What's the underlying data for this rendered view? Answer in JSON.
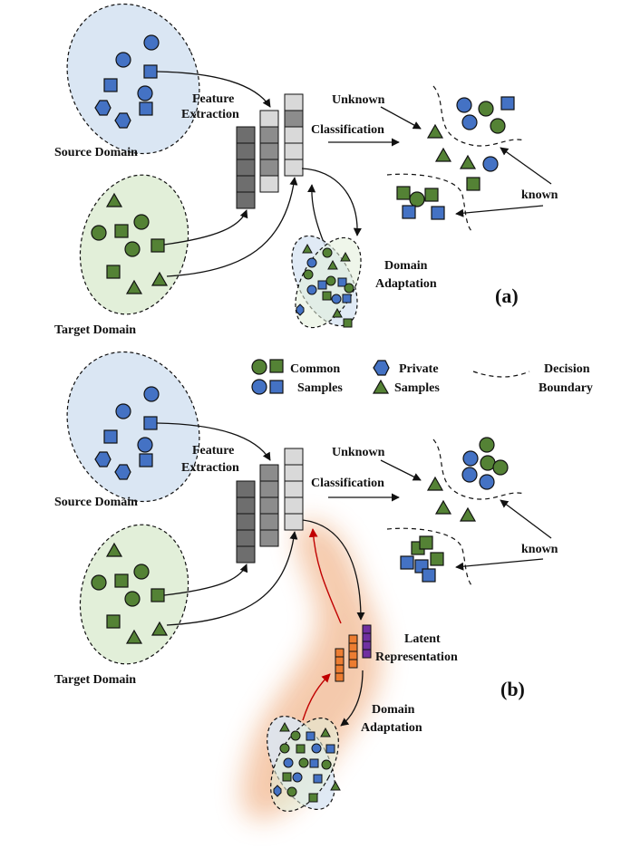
{
  "colors": {
    "blue_fill": "#4472c4",
    "green_fill": "#548235",
    "purple_fill": "#7030a0",
    "orange_fill": "#ed7d31",
    "source_bg": "#dae6f3",
    "target_bg": "#e2efd9",
    "glow": "#f4c7a8",
    "red_arrow": "#c00000"
  },
  "panel_a": {
    "source_label": "Source Domain",
    "target_label": "Target Domain",
    "feature_extraction": [
      "Feature",
      "Extraction"
    ],
    "classification": "Classification",
    "unknown": "Unknown",
    "known": "known",
    "domain_adaptation": [
      "Domain",
      "Adaptation"
    ],
    "tag": "(a)"
  },
  "legend": {
    "common": [
      "Common",
      "Samples"
    ],
    "private": [
      "Private",
      "Samples"
    ],
    "boundary": [
      "Decision",
      "Boundary"
    ]
  },
  "panel_b": {
    "source_label": "Source Domain",
    "target_label": "Target Domain",
    "feature_extraction": [
      "Feature",
      "Extraction"
    ],
    "classification": "Classification",
    "unknown": "Unknown",
    "known": "known",
    "latent": [
      "Latent",
      "Representation"
    ],
    "domain_adaptation": [
      "Domain",
      "Adaptation"
    ],
    "tag": "(b)"
  },
  "icons": [
    "circle-icon",
    "square-icon",
    "hexagon-icon",
    "triangle-icon"
  ]
}
